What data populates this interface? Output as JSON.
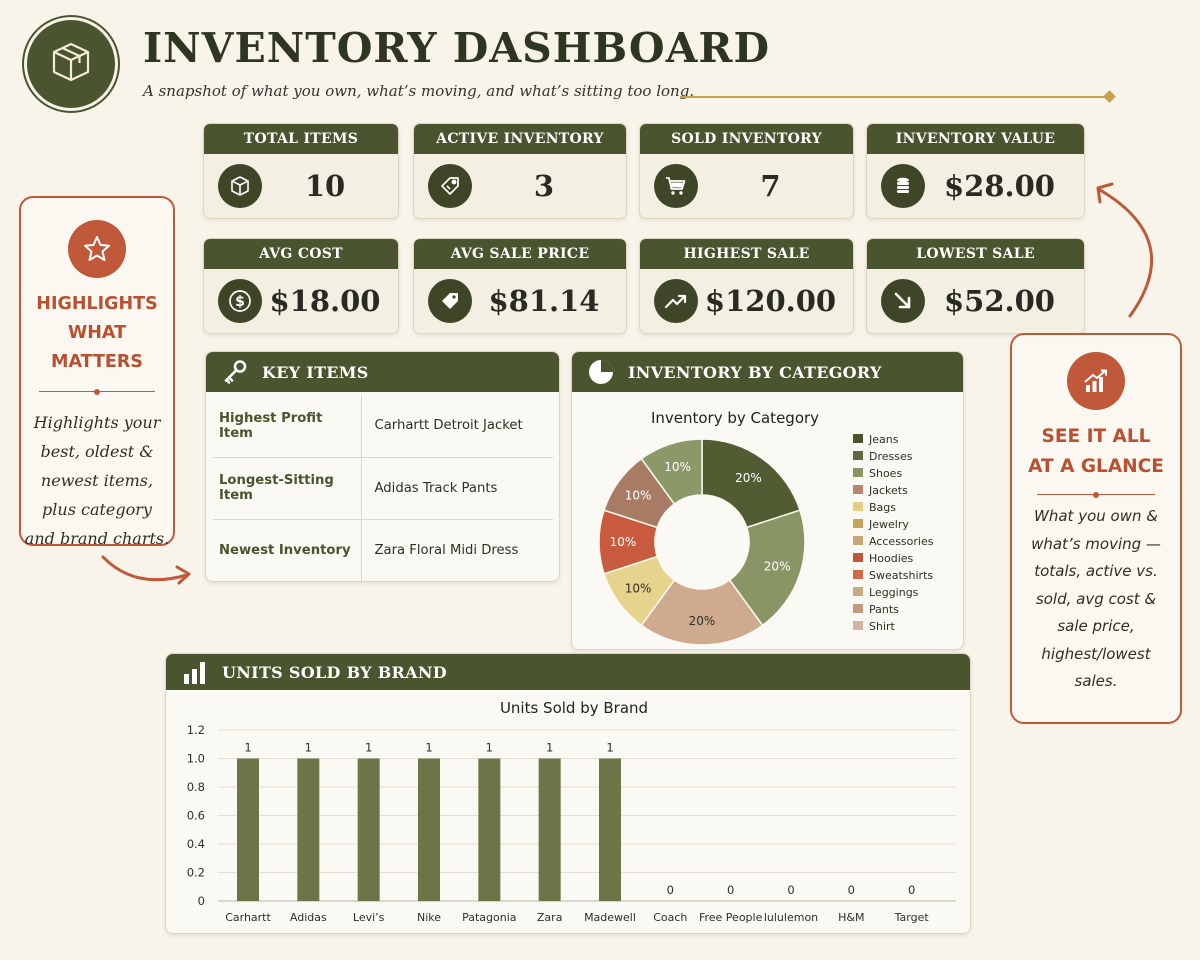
{
  "header": {
    "title": "INVENTORY DASHBOARD",
    "subtitle": "A snapshot of what you own, what’s moving, and what’s sitting too long.",
    "logo_icon": "box-icon"
  },
  "kpis": [
    {
      "label": "TOTAL ITEMS",
      "value": "10",
      "icon": "box-icon"
    },
    {
      "label": "ACTIVE INVENTORY",
      "value": "3",
      "icon": "tag-icon"
    },
    {
      "label": "SOLD INVENTORY",
      "value": "7",
      "icon": "cart-icon"
    },
    {
      "label": "INVENTORY VALUE",
      "value": "$28.00",
      "icon": "coins-icon"
    },
    {
      "label": "AVG COST",
      "value": "$18.00",
      "icon": "dollar-icon"
    },
    {
      "label": "AVG SALE PRICE",
      "value": "$81.14",
      "icon": "price-tag-icon"
    },
    {
      "label": "HIGHEST SALE",
      "value": "$120.00",
      "icon": "trend-up-icon"
    },
    {
      "label": "LOWEST SALE",
      "value": "$52.00",
      "icon": "trend-down-icon"
    }
  ],
  "callout_left": {
    "title_lines": [
      "HIGHLIGHTS",
      "WHAT MATTERS"
    ],
    "text_lines": [
      "Highlights your",
      "best, oldest &",
      "newest items,",
      "plus category",
      "and brand charts."
    ],
    "icon": "star-icon"
  },
  "callout_right": {
    "title_lines": [
      "SEE IT ALL",
      "AT A GLANCE"
    ],
    "text_lines": [
      "What you own &",
      "what’s moving —",
      "totals, active vs.",
      "sold, avg cost &",
      "sale price,",
      "highest/lowest",
      "sales."
    ],
    "icon": "chart-up-icon"
  },
  "key_items": {
    "title": "KEY ITEMS",
    "rows": [
      {
        "label": "Highest Profit Item",
        "value": "Carhartt Detroit Jacket"
      },
      {
        "label": "Longest-Sitting Item",
        "value": "Adidas Track Pants"
      },
      {
        "label": "Newest Inventory",
        "value": "Zara Floral Midi Dress"
      }
    ]
  },
  "category_panel": {
    "title": "INVENTORY BY CATEGORY"
  },
  "brand_panel": {
    "title": "UNITS SOLD BY BRAND"
  },
  "colors": {
    "olive_dark": "#4a542f",
    "accent_rust": "#c0583a",
    "gold": "#c9a447",
    "background": "#f8f4ea"
  },
  "chart_data": [
    {
      "type": "pie",
      "title": "Inventory by Category",
      "donut": true,
      "legend": [
        "Jeans",
        "Dresses",
        "Shoes",
        "Jackets",
        "Bags",
        "Jewelry",
        "Accessories",
        "Hoodies",
        "Sweatshirts",
        "Leggings",
        "Pants",
        "Shirt"
      ],
      "legend_colors": [
        "#4a542f",
        "#5e6a3b",
        "#8a9565",
        "#b6876a",
        "#e3cf84",
        "#c7a65c",
        "#c6a578",
        "#c2583a",
        "#d06a48",
        "#c9aa82",
        "#c39a7c",
        "#d3b4a0"
      ],
      "legend_placement": "right",
      "slices": [
        {
          "label": "20%",
          "value": 20,
          "color": "#525c33"
        },
        {
          "label": "20%",
          "value": 20,
          "color": "#8a9565"
        },
        {
          "label": "20%",
          "value": 20,
          "color": "#cfaa8f"
        },
        {
          "label": "10%",
          "value": 10,
          "color": "#e6d48d"
        },
        {
          "label": "10%",
          "value": 10,
          "color": "#c85a3d"
        },
        {
          "label": "10%",
          "value": 10,
          "color": "#a87b64"
        },
        {
          "label": "10%",
          "value": 10,
          "color": "#8d9868"
        }
      ]
    },
    {
      "type": "bar",
      "title": "Units Sold by Brand",
      "categories": [
        "Carhartt",
        "Adidas",
        "Levi’s",
        "Nike",
        "Patagonia",
        "Zara",
        "Madewell",
        "Coach",
        "Free People",
        "lululemon",
        "H&M",
        "Target"
      ],
      "values": [
        1,
        1,
        1,
        1,
        1,
        1,
        1,
        0,
        0,
        0,
        0,
        0
      ],
      "ylim": [
        0,
        1.2
      ],
      "yticks": [
        "0",
        "0.2",
        "0.4",
        "0.6",
        "0.8",
        "1.0",
        "1.2"
      ],
      "grid": true,
      "bar_color": "#6b7547"
    }
  ]
}
